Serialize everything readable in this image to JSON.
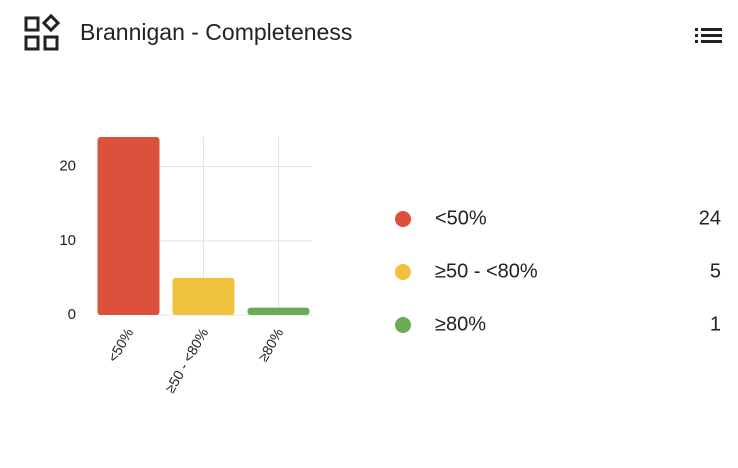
{
  "chart_data": {
    "type": "bar",
    "title": "Brannigan - Completeness",
    "categories": [
      "<50%",
      "≥50 - <80%",
      "≥80%"
    ],
    "values": [
      24,
      5,
      1
    ],
    "colors": [
      "#dc513b",
      "#f1c23d",
      "#6aab55"
    ],
    "ylim": [
      0,
      24
    ],
    "yticks": [
      0,
      10,
      20
    ],
    "grid": true,
    "legend": "right"
  }
}
